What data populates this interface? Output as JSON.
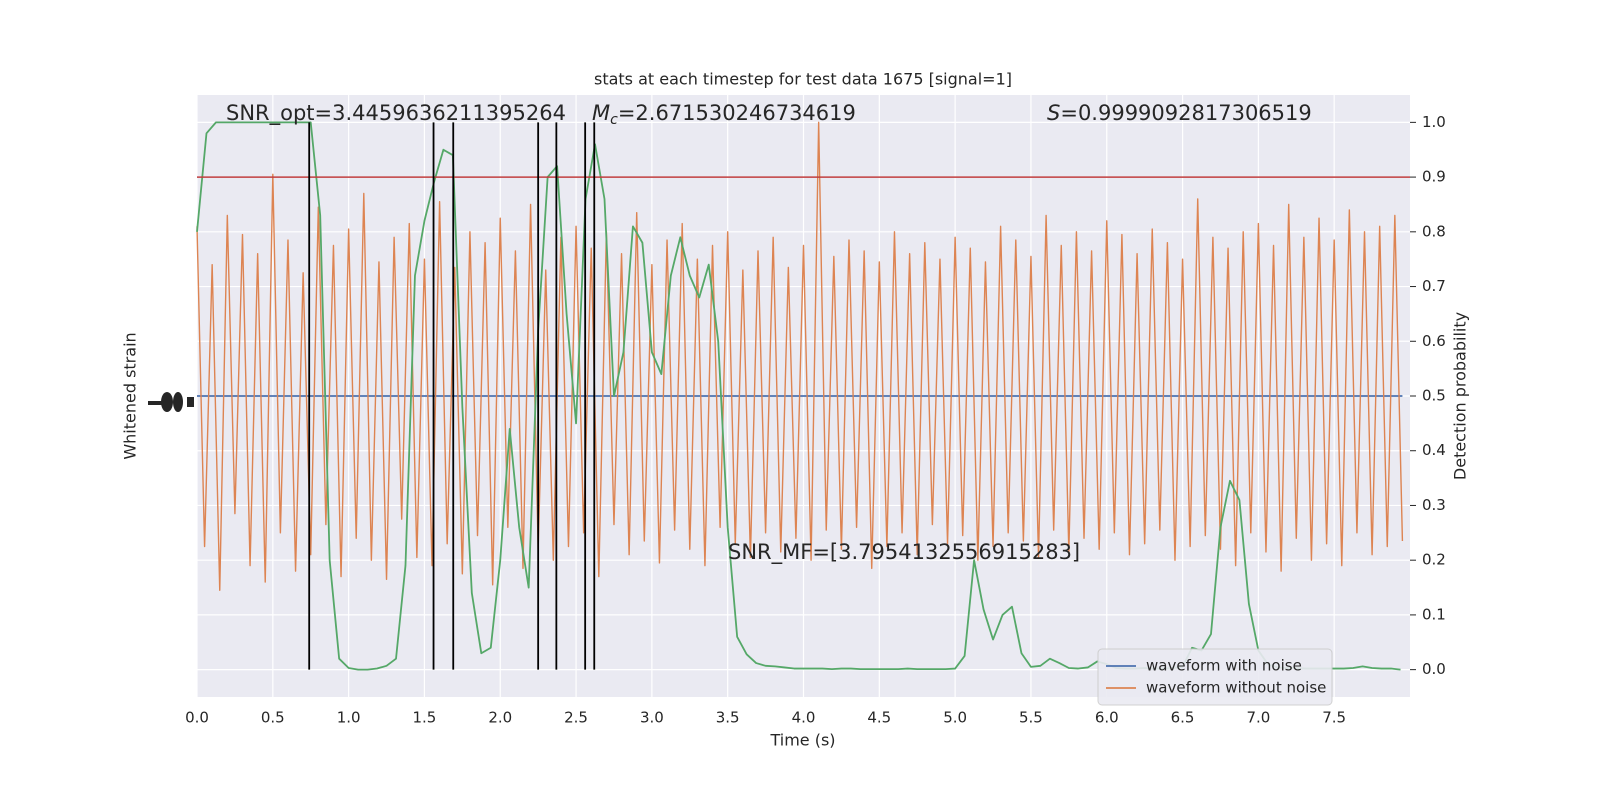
{
  "chart_data": {
    "type": "line",
    "title": "stats at each timestep for test data 1675 [signal=1]",
    "xlabel": "Time (s)",
    "ylabel": "Whitened strain",
    "y2label": "Detection probability",
    "xlim": [
      0,
      8.0
    ],
    "ylim": [
      -1.1,
      1.1
    ],
    "y2lim": [
      -0.05,
      1.05
    ],
    "xticks": [
      {
        "value": 0,
        "label": "0.0"
      },
      {
        "value": 0.5,
        "label": "0.5"
      },
      {
        "value": 1,
        "label": "1.0"
      },
      {
        "value": 1.5,
        "label": "1.5"
      },
      {
        "value": 2,
        "label": "2.0"
      },
      {
        "value": 2.5,
        "label": "2.5"
      },
      {
        "value": 3,
        "label": "3.0"
      },
      {
        "value": 3.5,
        "label": "3.5"
      },
      {
        "value": 4,
        "label": "4.0"
      },
      {
        "value": 4.5,
        "label": "4.5"
      },
      {
        "value": 5,
        "label": "5.0"
      },
      {
        "value": 5.5,
        "label": "5.5"
      },
      {
        "value": 6,
        "label": "6.0"
      },
      {
        "value": 6.5,
        "label": "6.5"
      },
      {
        "value": 7,
        "label": "7.0"
      },
      {
        "value": 7.5,
        "label": "7.5"
      }
    ],
    "y2ticks": [
      {
        "value": 0,
        "label": "0.0"
      },
      {
        "value": 0.1,
        "label": "0.1"
      },
      {
        "value": 0.2,
        "label": "0.2"
      },
      {
        "value": 0.3,
        "label": "0.3"
      },
      {
        "value": 0.4,
        "label": "0.4"
      },
      {
        "value": 0.5,
        "label": "0.5"
      },
      {
        "value": 0.6,
        "label": "0.6"
      },
      {
        "value": 0.7,
        "label": "0.7"
      },
      {
        "value": 0.8,
        "label": "0.8"
      },
      {
        "value": 0.9,
        "label": "0.9"
      },
      {
        "value": 1,
        "label": "1.0"
      }
    ],
    "grid": true,
    "legend": "lower right",
    "series": [
      {
        "name": "waveform with noise",
        "color": "#4c72b0",
        "x": [
          0,
          7.95
        ],
        "values": [
          0,
          0
        ]
      },
      {
        "name": "waveform without noise",
        "color": "#dd8452",
        "x": [
          0,
          0.05,
          0.1,
          0.15,
          0.2,
          0.25,
          0.3,
          0.35,
          0.4,
          0.45,
          0.5,
          0.55,
          0.6,
          0.65,
          0.7,
          0.75,
          0.8,
          0.85,
          0.9,
          0.95,
          1,
          1.05,
          1.1,
          1.15,
          1.2,
          1.25,
          1.3,
          1.35,
          1.4,
          1.45,
          1.5,
          1.55,
          1.6,
          1.65,
          1.7,
          1.75,
          1.8,
          1.85,
          1.9,
          1.95,
          2,
          2.05,
          2.1,
          2.15,
          2.2,
          2.25,
          2.3,
          2.35,
          2.4,
          2.45,
          2.5,
          2.55,
          2.6,
          2.65,
          2.7,
          2.75,
          2.8,
          2.85,
          2.9,
          2.95,
          3,
          3.05,
          3.1,
          3.15,
          3.2,
          3.25,
          3.3,
          3.35,
          3.4,
          3.45,
          3.5,
          3.55,
          3.6,
          3.65,
          3.7,
          3.75,
          3.8,
          3.85,
          3.9,
          3.95,
          4,
          4.05,
          4.1,
          4.15,
          4.2,
          4.25,
          4.3,
          4.35,
          4.4,
          4.45,
          4.5,
          4.55,
          4.6,
          4.65,
          4.7,
          4.75,
          4.8,
          4.85,
          4.9,
          4.95,
          5,
          5.05,
          5.1,
          5.15,
          5.2,
          5.25,
          5.3,
          5.35,
          5.4,
          5.45,
          5.5,
          5.55,
          5.6,
          5.65,
          5.7,
          5.75,
          5.8,
          5.85,
          5.9,
          5.95,
          6,
          6.05,
          6.1,
          6.15,
          6.2,
          6.25,
          6.3,
          6.35,
          6.4,
          6.45,
          6.5,
          6.55,
          6.6,
          6.65,
          6.7,
          6.75,
          6.8,
          6.85,
          6.9,
          6.95,
          7,
          7.05,
          7.1,
          7.15,
          7.2,
          7.25,
          7.3,
          7.35,
          7.4,
          7.45,
          7.5,
          7.55,
          7.6,
          7.65,
          7.7,
          7.75,
          7.8,
          7.85,
          7.9,
          7.95
        ],
        "values": [
          0.62,
          -0.55,
          0.48,
          -0.71,
          0.66,
          -0.43,
          0.59,
          -0.62,
          0.52,
          -0.68,
          0.81,
          -0.5,
          0.57,
          -0.64,
          0.45,
          -0.58,
          0.69,
          -0.47,
          0.55,
          -0.66,
          0.61,
          -0.52,
          0.74,
          -0.6,
          0.49,
          -0.67,
          0.58,
          -0.45,
          0.63,
          -0.59,
          0.5,
          -0.62,
          0.71,
          -0.54,
          0.47,
          -0.65,
          0.6,
          -0.51,
          0.56,
          -0.69,
          0.65,
          -0.48,
          0.53,
          -0.63,
          0.7,
          -0.56,
          0.46,
          -0.6,
          0.58,
          -0.55,
          0.62,
          -0.5,
          0.54,
          -0.66,
          0.6,
          -0.47,
          0.52,
          -0.58,
          0.67,
          -0.53,
          0.48,
          -0.61,
          0.57,
          -0.49,
          0.63,
          -0.56,
          0.5,
          -0.62,
          0.55,
          -0.48,
          0.6,
          -0.54,
          0.46,
          -0.59,
          0.53,
          -0.5,
          0.58,
          -0.57,
          0.47,
          -0.52,
          0.55,
          -0.6,
          1.0,
          -0.49,
          0.51,
          -0.56,
          0.57,
          -0.48,
          0.53,
          -0.63,
          0.49,
          -0.55,
          0.6,
          -0.5,
          0.52,
          -0.58,
          0.56,
          -0.47,
          0.5,
          -0.54,
          0.58,
          -0.51,
          0.54,
          -0.6,
          0.49,
          -0.55,
          0.62,
          -0.5,
          0.57,
          -0.53,
          0.51,
          -0.59,
          0.66,
          -0.49,
          0.55,
          -0.57,
          0.6,
          -0.52,
          0.53,
          -0.56,
          0.64,
          -0.5,
          0.59,
          -0.58,
          0.52,
          -0.54,
          0.61,
          -0.49,
          0.56,
          -0.6,
          0.5,
          -0.55,
          0.72,
          -0.51,
          0.58,
          -0.56,
          0.54,
          -0.62,
          0.6,
          -0.5,
          0.63,
          -0.57,
          0.55,
          -0.64,
          0.7,
          -0.52,
          0.58,
          -0.6,
          0.65,
          -0.54,
          0.57,
          -0.62,
          0.68,
          -0.5,
          0.6,
          -0.58,
          0.62,
          -0.55,
          0.66,
          -0.53
        ]
      },
      {
        "color": "#55a868",
        "axis": "y2",
        "x": [
          0,
          0.0625,
          0.125,
          0.1875,
          0.25,
          0.3125,
          0.375,
          0.4375,
          0.5,
          0.5625,
          0.625,
          0.6875,
          0.75,
          0.8125,
          0.875,
          0.9375,
          1,
          1.0625,
          1.125,
          1.1875,
          1.25,
          1.3125,
          1.375,
          1.4375,
          1.5,
          1.5625,
          1.625,
          1.6875,
          1.75,
          1.8125,
          1.875,
          1.9375,
          2,
          2.0625,
          2.125,
          2.1875,
          2.25,
          2.3125,
          2.375,
          2.4375,
          2.5,
          2.5625,
          2.625,
          2.6875,
          2.75,
          2.8125,
          2.875,
          2.9375,
          3,
          3.0625,
          3.125,
          3.1875,
          3.25,
          3.3125,
          3.375,
          3.4375,
          3.5,
          3.5625,
          3.625,
          3.6875,
          3.75,
          3.8125,
          3.875,
          3.9375,
          4,
          4.0625,
          4.125,
          4.1875,
          4.25,
          4.3125,
          4.375,
          4.4375,
          4.5,
          4.5625,
          4.625,
          4.6875,
          4.75,
          4.8125,
          4.875,
          4.9375,
          5,
          5.0625,
          5.125,
          5.1875,
          5.25,
          5.3125,
          5.375,
          5.4375,
          5.5,
          5.5625,
          5.625,
          5.6875,
          5.75,
          5.8125,
          5.875,
          5.9375,
          6,
          6.0625,
          6.125,
          6.1875,
          6.25,
          6.3125,
          6.375,
          6.4375,
          6.5,
          6.5625,
          6.625,
          6.6875,
          6.75,
          6.8125,
          6.875,
          6.9375,
          7,
          7.0625,
          7.125,
          7.1875,
          7.25,
          7.3125,
          7.375,
          7.4375,
          7.5,
          7.5625,
          7.625,
          7.6875,
          7.75,
          7.8125,
          7.875,
          7.9375
        ],
        "values": [
          0.8,
          0.98,
          1.0,
          1.0,
          1.0,
          1.0,
          1.0,
          1.0,
          1.0,
          1.0,
          1.0,
          1.0,
          1.0,
          0.83,
          0.2,
          0.02,
          0.003,
          0.0,
          0.0,
          0.002,
          0.007,
          0.02,
          0.19,
          0.72,
          0.82,
          0.89,
          0.95,
          0.94,
          0.48,
          0.14,
          0.03,
          0.04,
          0.2,
          0.44,
          0.26,
          0.15,
          0.62,
          0.9,
          0.92,
          0.65,
          0.45,
          0.86,
          0.96,
          0.86,
          0.5,
          0.58,
          0.81,
          0.78,
          0.58,
          0.54,
          0.72,
          0.79,
          0.72,
          0.68,
          0.74,
          0.6,
          0.26,
          0.06,
          0.028,
          0.012,
          0.007,
          0.006,
          0.004,
          0.002,
          0.002,
          0.002,
          0.002,
          0.001,
          0.002,
          0.002,
          0.001,
          0.001,
          0.001,
          0.001,
          0.001,
          0.002,
          0.001,
          0.001,
          0.001,
          0.001,
          0.002,
          0.025,
          0.2,
          0.11,
          0.055,
          0.1,
          0.115,
          0.03,
          0.005,
          0.007,
          0.02,
          0.012,
          0.003,
          0.002,
          0.004,
          0.015,
          0.01,
          0.003,
          0.002,
          0.002,
          0.003,
          0.002,
          0.002,
          0.003,
          0.005,
          0.04,
          0.035,
          0.065,
          0.26,
          0.345,
          0.31,
          0.12,
          0.035,
          0.01,
          0.004,
          0.003,
          0.003,
          0.002,
          0.002,
          0.002,
          0.002,
          0.002,
          0.003,
          0.006,
          0.003,
          0.002,
          0.002,
          0.0
        ]
      }
    ],
    "vlines": [
      0.74,
      1.56,
      1.69,
      2.25,
      2.37,
      2.56,
      2.62
    ],
    "hline": 0.9,
    "hline_color": "#c03d3e",
    "annotations": {
      "snr_opt": "SNR_opt=3.4459636211395264",
      "mc_symbol": "M",
      "mc_subscript": "c",
      "mc_value": "=2.671530246734619",
      "s_symbol": "S",
      "s_value": "=0.9999092817306519",
      "snr_mf": "SNR_MF=[3.7954132556915283]"
    }
  }
}
